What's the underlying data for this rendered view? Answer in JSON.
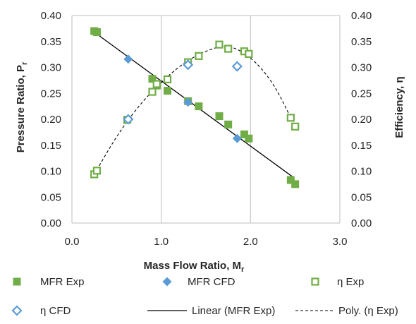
{
  "chart_data": {
    "type": "scatter",
    "title": "",
    "xlabel": "Mass Flow Ratio, M",
    "xlabel_sub": "r",
    "ylabel_left": "Pressure Ratio, P",
    "ylabel_left_sub": "r",
    "ylabel_right": "Efficiency, η",
    "xlim": [
      0,
      3
    ],
    "ylim_left": [
      0,
      0.4
    ],
    "ylim_right": [
      0,
      0.4
    ],
    "x_ticks": [
      "0.0",
      "1.0",
      "2.0",
      "3.0"
    ],
    "y_ticks_left": [
      "0.00",
      "0.05",
      "0.10",
      "0.15",
      "0.20",
      "0.25",
      "0.30",
      "0.35",
      "0.40"
    ],
    "y_ticks_right": [
      "0.00",
      "0.05",
      "0.10",
      "0.15",
      "0.20",
      "0.25",
      "0.30",
      "0.35",
      "0.40"
    ],
    "grid": "vertical only",
    "legend_position": "bottom",
    "colors": {
      "green": "#70ad47",
      "blue": "#5b9bd5",
      "line": "#000000",
      "grid": "#bfbfbf"
    },
    "series": [
      {
        "name": "MFR Exp",
        "marker": "filled-square",
        "color": "#70ad47",
        "x": [
          0.25,
          0.28,
          0.9,
          0.95,
          1.07,
          1.3,
          1.42,
          1.65,
          1.75,
          1.93,
          1.98,
          2.45,
          2.5
        ],
        "y": [
          0.37,
          0.368,
          0.278,
          0.265,
          0.255,
          0.235,
          0.225,
          0.206,
          0.19,
          0.171,
          0.163,
          0.083,
          0.075
        ]
      },
      {
        "name": "MFR CFD",
        "marker": "filled-diamond",
        "color": "#5b9bd5",
        "x": [
          0.63,
          1.3,
          1.85
        ],
        "y": [
          0.316,
          0.233,
          0.163
        ]
      },
      {
        "name": "η Exp",
        "marker": "hollow-square",
        "color": "#70ad47",
        "x": [
          0.25,
          0.28,
          0.62,
          0.9,
          0.95,
          1.07,
          1.3,
          1.42,
          1.65,
          1.75,
          1.93,
          1.98,
          2.45,
          2.5
        ],
        "y": [
          0.094,
          0.101,
          0.199,
          0.253,
          0.268,
          0.277,
          0.31,
          0.322,
          0.344,
          0.336,
          0.331,
          0.326,
          0.203,
          0.186
        ]
      },
      {
        "name": "η CFD",
        "marker": "hollow-diamond",
        "color": "#5b9bd5",
        "x": [
          0.63,
          1.3,
          1.85
        ],
        "y": [
          0.2,
          0.305,
          0.302
        ]
      },
      {
        "name": "Linear (MFR Exp)",
        "marker": "solid-line",
        "color": "#000000",
        "x": [
          0.25,
          2.48
        ],
        "y": [
          0.368,
          0.088
        ]
      },
      {
        "name": "Poly. (η Exp)",
        "marker": "dashed-line",
        "color": "#000000",
        "x": [
          0.25,
          0.5,
          0.75,
          1.0,
          1.25,
          1.5,
          1.75,
          2.0,
          2.25,
          2.5
        ],
        "y": [
          0.094,
          0.166,
          0.225,
          0.271,
          0.307,
          0.331,
          0.34,
          0.318,
          0.268,
          0.186
        ]
      }
    ]
  }
}
